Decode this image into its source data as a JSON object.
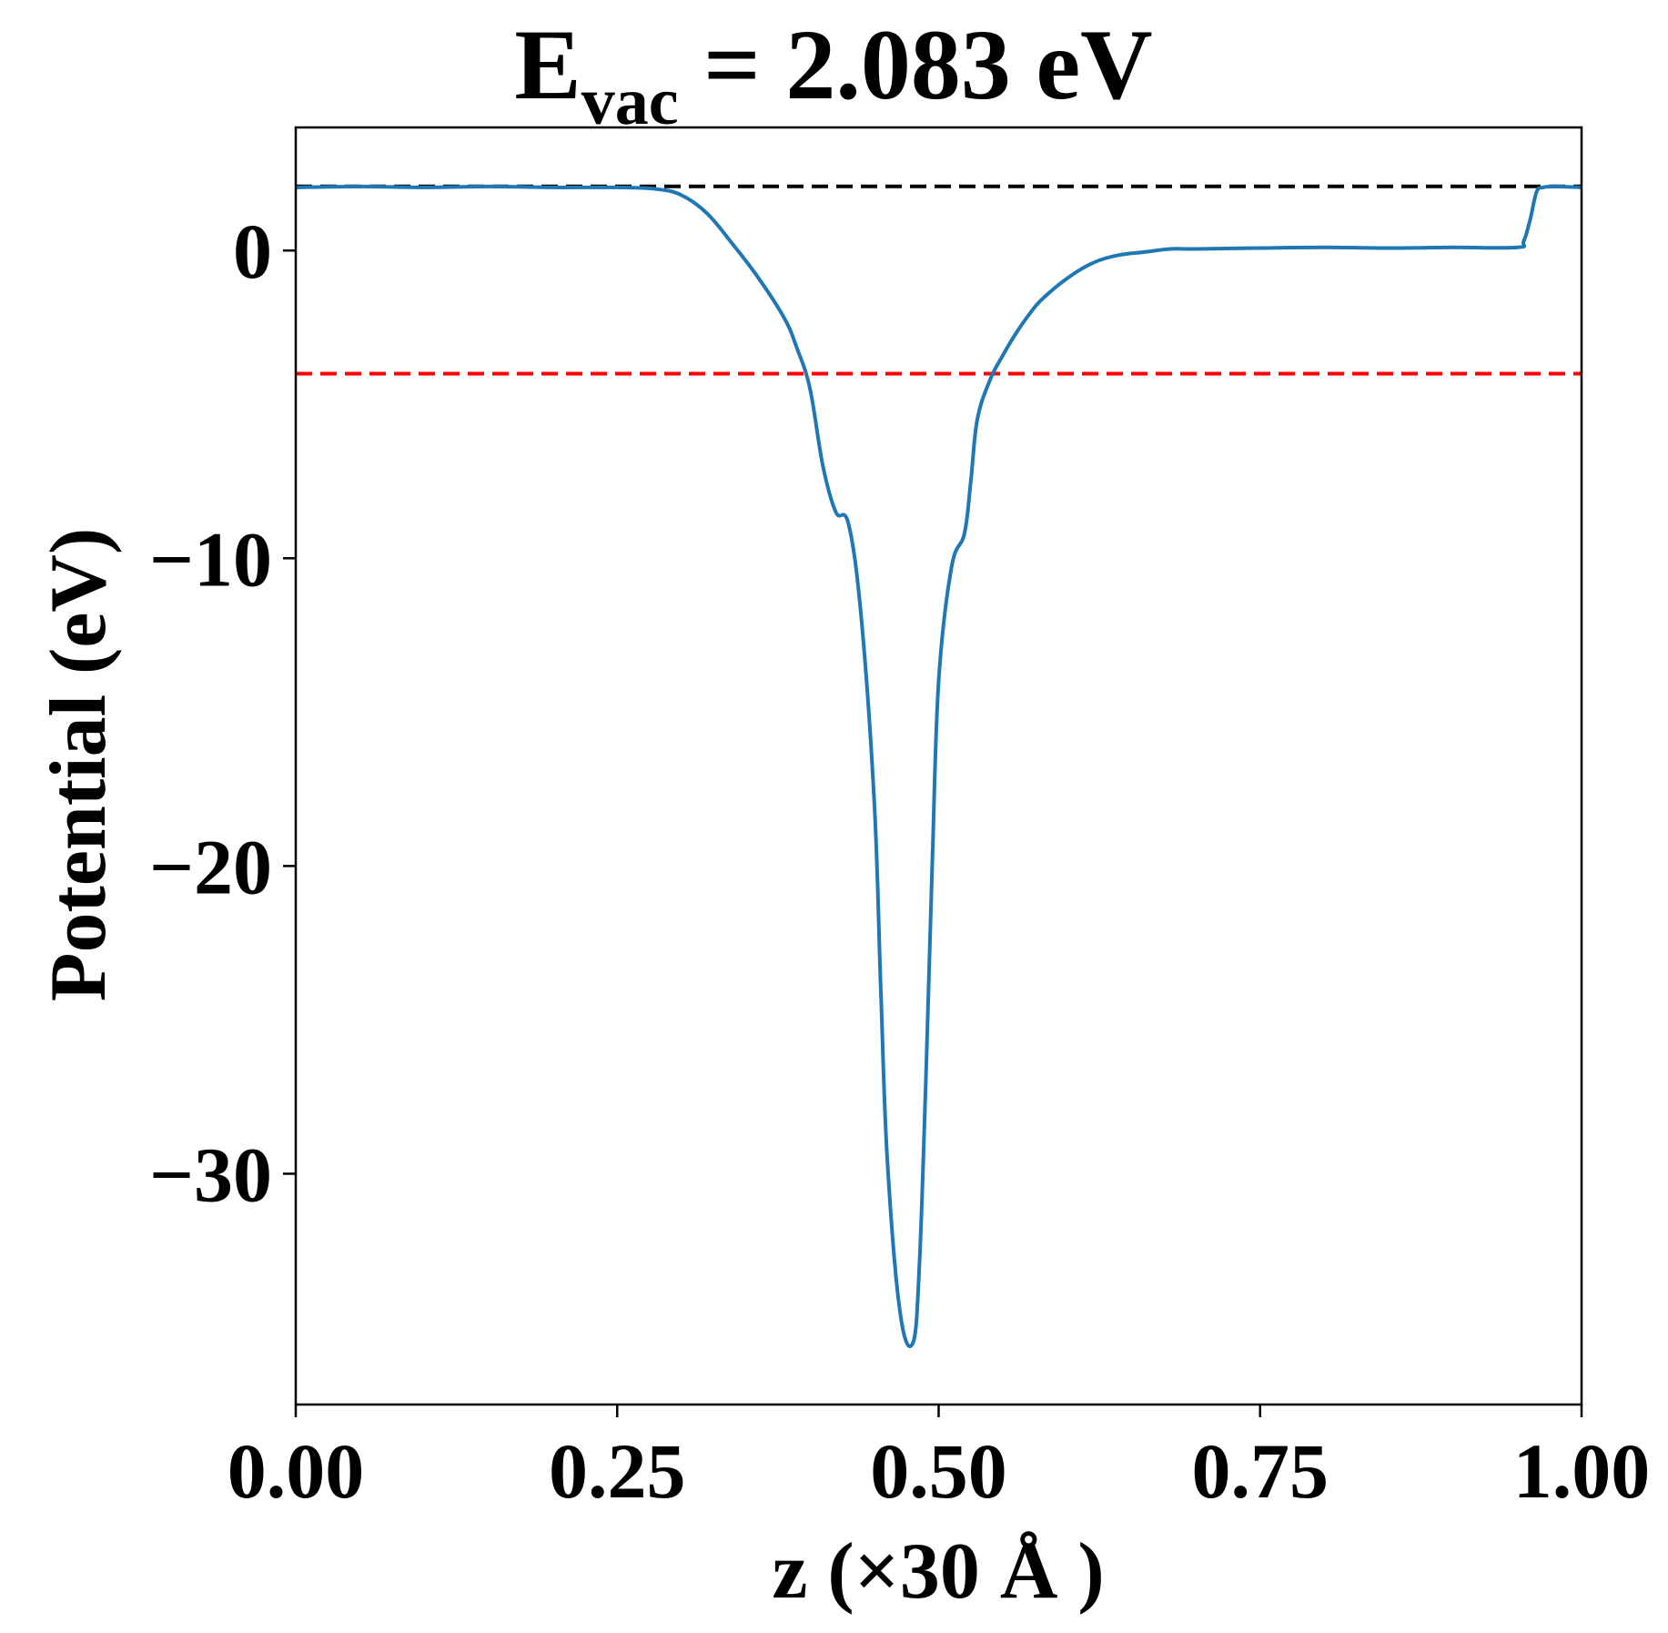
{
  "chart_data": {
    "type": "line",
    "title": {
      "main": "E",
      "subscript": "vac",
      "rest": " = 2.083 eV"
    },
    "xlabel": "z (×30 Å )",
    "ylabel": "Potential (eV)",
    "xlim": [
      0.0,
      1.0
    ],
    "ylim": [
      -37.5,
      4.0
    ],
    "xticks": [
      0.0,
      0.25,
      0.5,
      0.75,
      1.0
    ],
    "xtick_labels": [
      "0.00",
      "0.25",
      "0.50",
      "0.75",
      "1.00"
    ],
    "yticks": [
      0,
      -10,
      -20,
      -30
    ],
    "ytick_labels": [
      "0",
      "−10",
      "−20",
      "−30"
    ],
    "grid": false,
    "reference_lines": [
      {
        "y": 2.083,
        "color": "#000000",
        "style": "dashed"
      },
      {
        "y": -4.0,
        "color": "#ff0000",
        "style": "dashed"
      }
    ],
    "series": [
      {
        "color": "#1f77b4",
        "x": [
          0.0,
          0.05,
          0.1,
          0.15,
          0.2,
          0.25,
          0.28,
          0.3,
          0.32,
          0.34,
          0.36,
          0.38,
          0.39,
          0.4,
          0.41,
          0.42,
          0.43,
          0.44,
          0.45,
          0.455,
          0.46,
          0.47,
          0.48,
          0.485,
          0.49,
          0.495,
          0.5,
          0.51,
          0.52,
          0.525,
          0.53,
          0.54,
          0.55,
          0.56,
          0.57,
          0.58,
          0.6,
          0.62,
          0.64,
          0.66,
          0.68,
          0.7,
          0.75,
          0.8,
          0.85,
          0.9,
          0.95,
          0.955,
          0.96,
          0.965,
          0.97,
          0.98,
          1.0
        ],
        "y": [
          2.05,
          2.08,
          2.05,
          2.08,
          2.05,
          2.05,
          2.0,
          1.8,
          1.2,
          0.2,
          -0.9,
          -2.2,
          -3.2,
          -4.5,
          -7.0,
          -8.5,
          -8.9,
          -12.0,
          -18.0,
          -24.0,
          -29.5,
          -34.5,
          -35.5,
          -33.0,
          -27.0,
          -20.0,
          -14.0,
          -10.3,
          -9.2,
          -7.5,
          -5.5,
          -4.2,
          -3.4,
          -2.7,
          -2.1,
          -1.6,
          -0.9,
          -0.4,
          -0.15,
          -0.05,
          0.05,
          0.05,
          0.08,
          0.1,
          0.08,
          0.1,
          0.1,
          0.3,
          1.0,
          1.9,
          2.05,
          2.08,
          2.05
        ]
      }
    ]
  }
}
